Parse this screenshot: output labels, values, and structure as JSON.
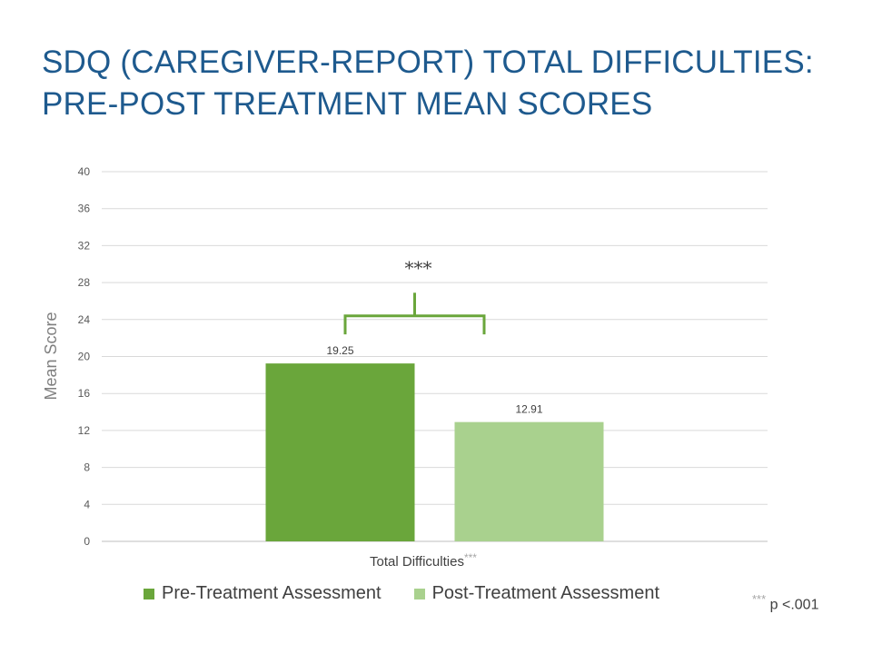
{
  "title_line1": "SDQ (CAREGIVER-REPORT) TOTAL DIFFICULTIES:",
  "title_line2": "PRE-POST TREATMENT MEAN SCORES",
  "significance_marker": "***",
  "footnote": {
    "stars": "***",
    "text": " p <.001"
  },
  "colors": {
    "title": "#1e5a8e",
    "pre": "#6aa63b",
    "post": "#a9d18e",
    "bracket": "#6aa63b",
    "grid": "#d9d9d9"
  },
  "chart_data": {
    "type": "bar",
    "categories": [
      "Total Difficulties"
    ],
    "category_suffix": "***",
    "series": [
      {
        "name": "Pre-Treatment Assessment",
        "values": [
          19.25
        ],
        "value_labels": [
          "19.25"
        ]
      },
      {
        "name": "Post-Treatment Assessment",
        "values": [
          12.91
        ],
        "value_labels": [
          "12.91"
        ]
      }
    ],
    "ylabel": "Mean Score",
    "ylim": [
      0,
      40
    ],
    "yticks": [
      0,
      4,
      8,
      12,
      16,
      20,
      24,
      28,
      32,
      36,
      40
    ],
    "grid": true,
    "legend_position": "bottom"
  }
}
